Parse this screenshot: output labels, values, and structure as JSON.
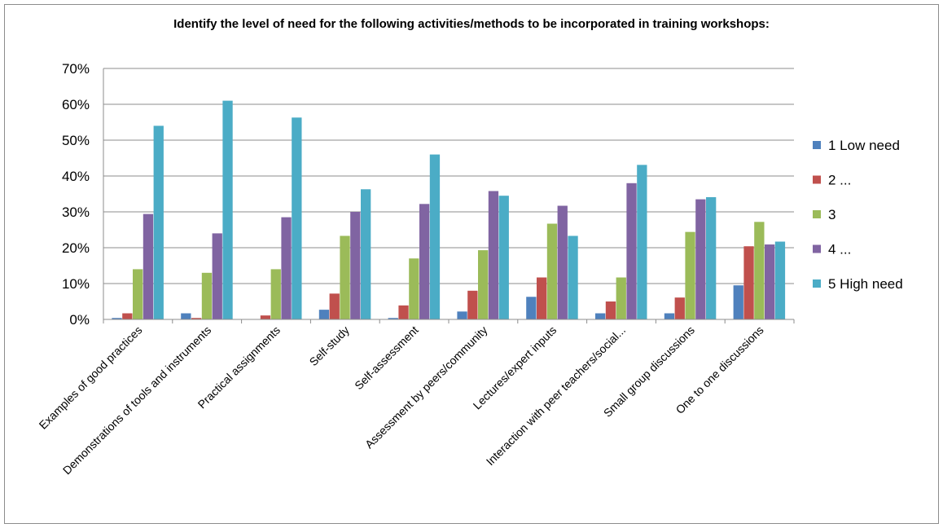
{
  "chart_data": {
    "type": "bar",
    "title": "Identify the level of need for the following activities/methods to be incorporated in training workshops:",
    "xlabel": "",
    "ylabel": "",
    "ylim": [
      0,
      0.7
    ],
    "yticks": [
      "0%",
      "10%",
      "20%",
      "30%",
      "40%",
      "50%",
      "60%",
      "70%"
    ],
    "grid": true,
    "legend_position": "right",
    "categories": [
      "Examples of good practices",
      "Demonstrations of tools and instruments",
      "Practical assignments",
      "Self-study",
      "Self-assessment",
      "Assessment by peers/community",
      "Lectures/expert inputs",
      "Interaction with peer teachers/social...",
      "Small group discussions",
      "One to one discussions"
    ],
    "series": [
      {
        "name": "1 Low need",
        "color": "#4F81BD",
        "values": [
          0.004,
          0.017,
          0.0,
          0.027,
          0.004,
          0.022,
          0.063,
          0.017,
          0.017,
          0.095
        ]
      },
      {
        "name": "2 ...",
        "color": "#C0504D",
        "values": [
          0.017,
          0.004,
          0.011,
          0.072,
          0.039,
          0.08,
          0.117,
          0.05,
          0.061,
          0.204
        ]
      },
      {
        "name": "3",
        "color": "#9BBB59",
        "values": [
          0.14,
          0.13,
          0.14,
          0.233,
          0.17,
          0.193,
          0.267,
          0.117,
          0.244,
          0.272
        ]
      },
      {
        "name": "4 ...",
        "color": "#8064A2",
        "values": [
          0.294,
          0.24,
          0.285,
          0.3,
          0.322,
          0.358,
          0.317,
          0.38,
          0.335,
          0.209
        ]
      },
      {
        "name": "5 High need",
        "color": "#4BACC6",
        "values": [
          0.54,
          0.61,
          0.563,
          0.363,
          0.46,
          0.345,
          0.233,
          0.431,
          0.341,
          0.217
        ]
      }
    ]
  }
}
